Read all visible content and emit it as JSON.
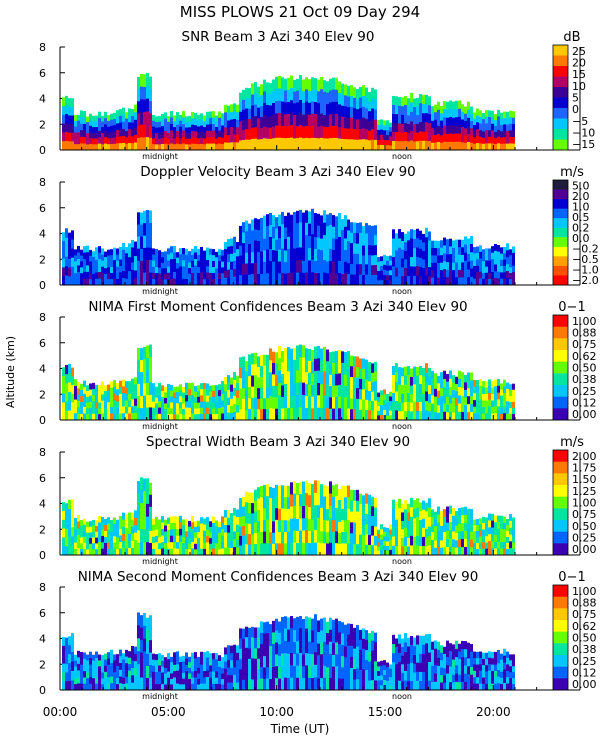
{
  "figure": {
    "title_line1": "MISS PLOWS  21 Oct 09 Day 294",
    "ylabel": "Altitude (km)",
    "xlabel": "Time (UT)",
    "x_ticks": [
      "00:00",
      "05:00",
      "10:00",
      "15:00",
      "20:00"
    ],
    "midnight_label": "midnight",
    "noon_label": "noon"
  },
  "chart_data": [
    {
      "type": "heatmap",
      "title": "SNR Beam 3 Azi 340 Elev 90",
      "unit": "dB",
      "y_ticks": [
        "0",
        "2",
        "4",
        "6",
        "8"
      ],
      "ylim": [
        0,
        8
      ],
      "xlim_hours": [
        0,
        24
      ],
      "colorbar": {
        "labels": [
          "25",
          "20",
          "15",
          "10",
          "5",
          "0",
          "−5",
          "−10",
          "−15"
        ],
        "colors": [
          "#ffc800",
          "#ff7800",
          "#ff0000",
          "#b40064",
          "#3c0096",
          "#0000d2",
          "#1e64ff",
          "#00c8ff",
          "#00e6a0",
          "#64ff00"
        ]
      }
    },
    {
      "type": "heatmap",
      "title": "Doppler Velocity Beam 3 Azi 340 Elev 90",
      "unit": "m/s",
      "y_ticks": [
        "0",
        "2",
        "4",
        "6",
        "8"
      ],
      "ylim": [
        0,
        8
      ],
      "xlim_hours": [
        0,
        24
      ],
      "colorbar": {
        "labels": [
          "5.0",
          "2.0",
          "1.0",
          "0.5",
          "0.2",
          "0.0",
          "−0.2",
          "−0.5",
          "−1.0",
          "−2.0"
        ],
        "colors": [
          "#1e1e3c",
          "#500096",
          "#0000d2",
          "#0064ff",
          "#00c8ff",
          "#00e6a0",
          "#64ff00",
          "#ffff00",
          "#ffa000",
          "#ff5000",
          "#ff0000"
        ]
      }
    },
    {
      "type": "heatmap",
      "title": "NIMA First Moment Confidences Beam 3 Azi 340 Elev 90",
      "unit": "0−1",
      "y_ticks": [
        "0",
        "2",
        "4",
        "6",
        "8"
      ],
      "ylim": [
        0,
        8
      ],
      "xlim_hours": [
        0,
        24
      ],
      "colorbar": {
        "labels": [
          "1.00",
          "0.88",
          "0.75",
          "0.62",
          "0.50",
          "0.38",
          "0.25",
          "0.12",
          "0.00"
        ],
        "colors": [
          "#ff0000",
          "#ff7800",
          "#ffc800",
          "#ffff00",
          "#64ff00",
          "#00e6a0",
          "#00c8ff",
          "#0064ff",
          "#3c00b4"
        ]
      }
    },
    {
      "type": "heatmap",
      "title": "Spectral Width Beam 3 Azi 340 Elev 90",
      "unit": "m/s",
      "y_ticks": [
        "0",
        "2",
        "4",
        "6",
        "8"
      ],
      "ylim": [
        0,
        8
      ],
      "xlim_hours": [
        0,
        24
      ],
      "colorbar": {
        "labels": [
          "2.00",
          "1.75",
          "1.50",
          "1.25",
          "1.00",
          "0.75",
          "0.50",
          "0.25",
          "0.00"
        ],
        "colors": [
          "#ff0000",
          "#ff7800",
          "#ffc800",
          "#ffff00",
          "#64ff00",
          "#00e6a0",
          "#00c8ff",
          "#0064ff",
          "#3c00b4"
        ]
      }
    },
    {
      "type": "heatmap",
      "title": "NIMA Second Moment Confidences Beam 3 Azi 340 Elev 90",
      "unit": "0−1",
      "y_ticks": [
        "0",
        "2",
        "4",
        "6",
        "8"
      ],
      "ylim": [
        0,
        8
      ],
      "xlim_hours": [
        0,
        24
      ],
      "colorbar": {
        "labels": [
          "1.00",
          "0.88",
          "0.75",
          "0.62",
          "0.50",
          "0.38",
          "0.25",
          "0.12",
          "0.00"
        ],
        "colors": [
          "#ff0000",
          "#ff7800",
          "#ffc800",
          "#ffff00",
          "#64ff00",
          "#00e6a0",
          "#00c8ff",
          "#0064ff",
          "#3c00b4"
        ]
      }
    }
  ]
}
